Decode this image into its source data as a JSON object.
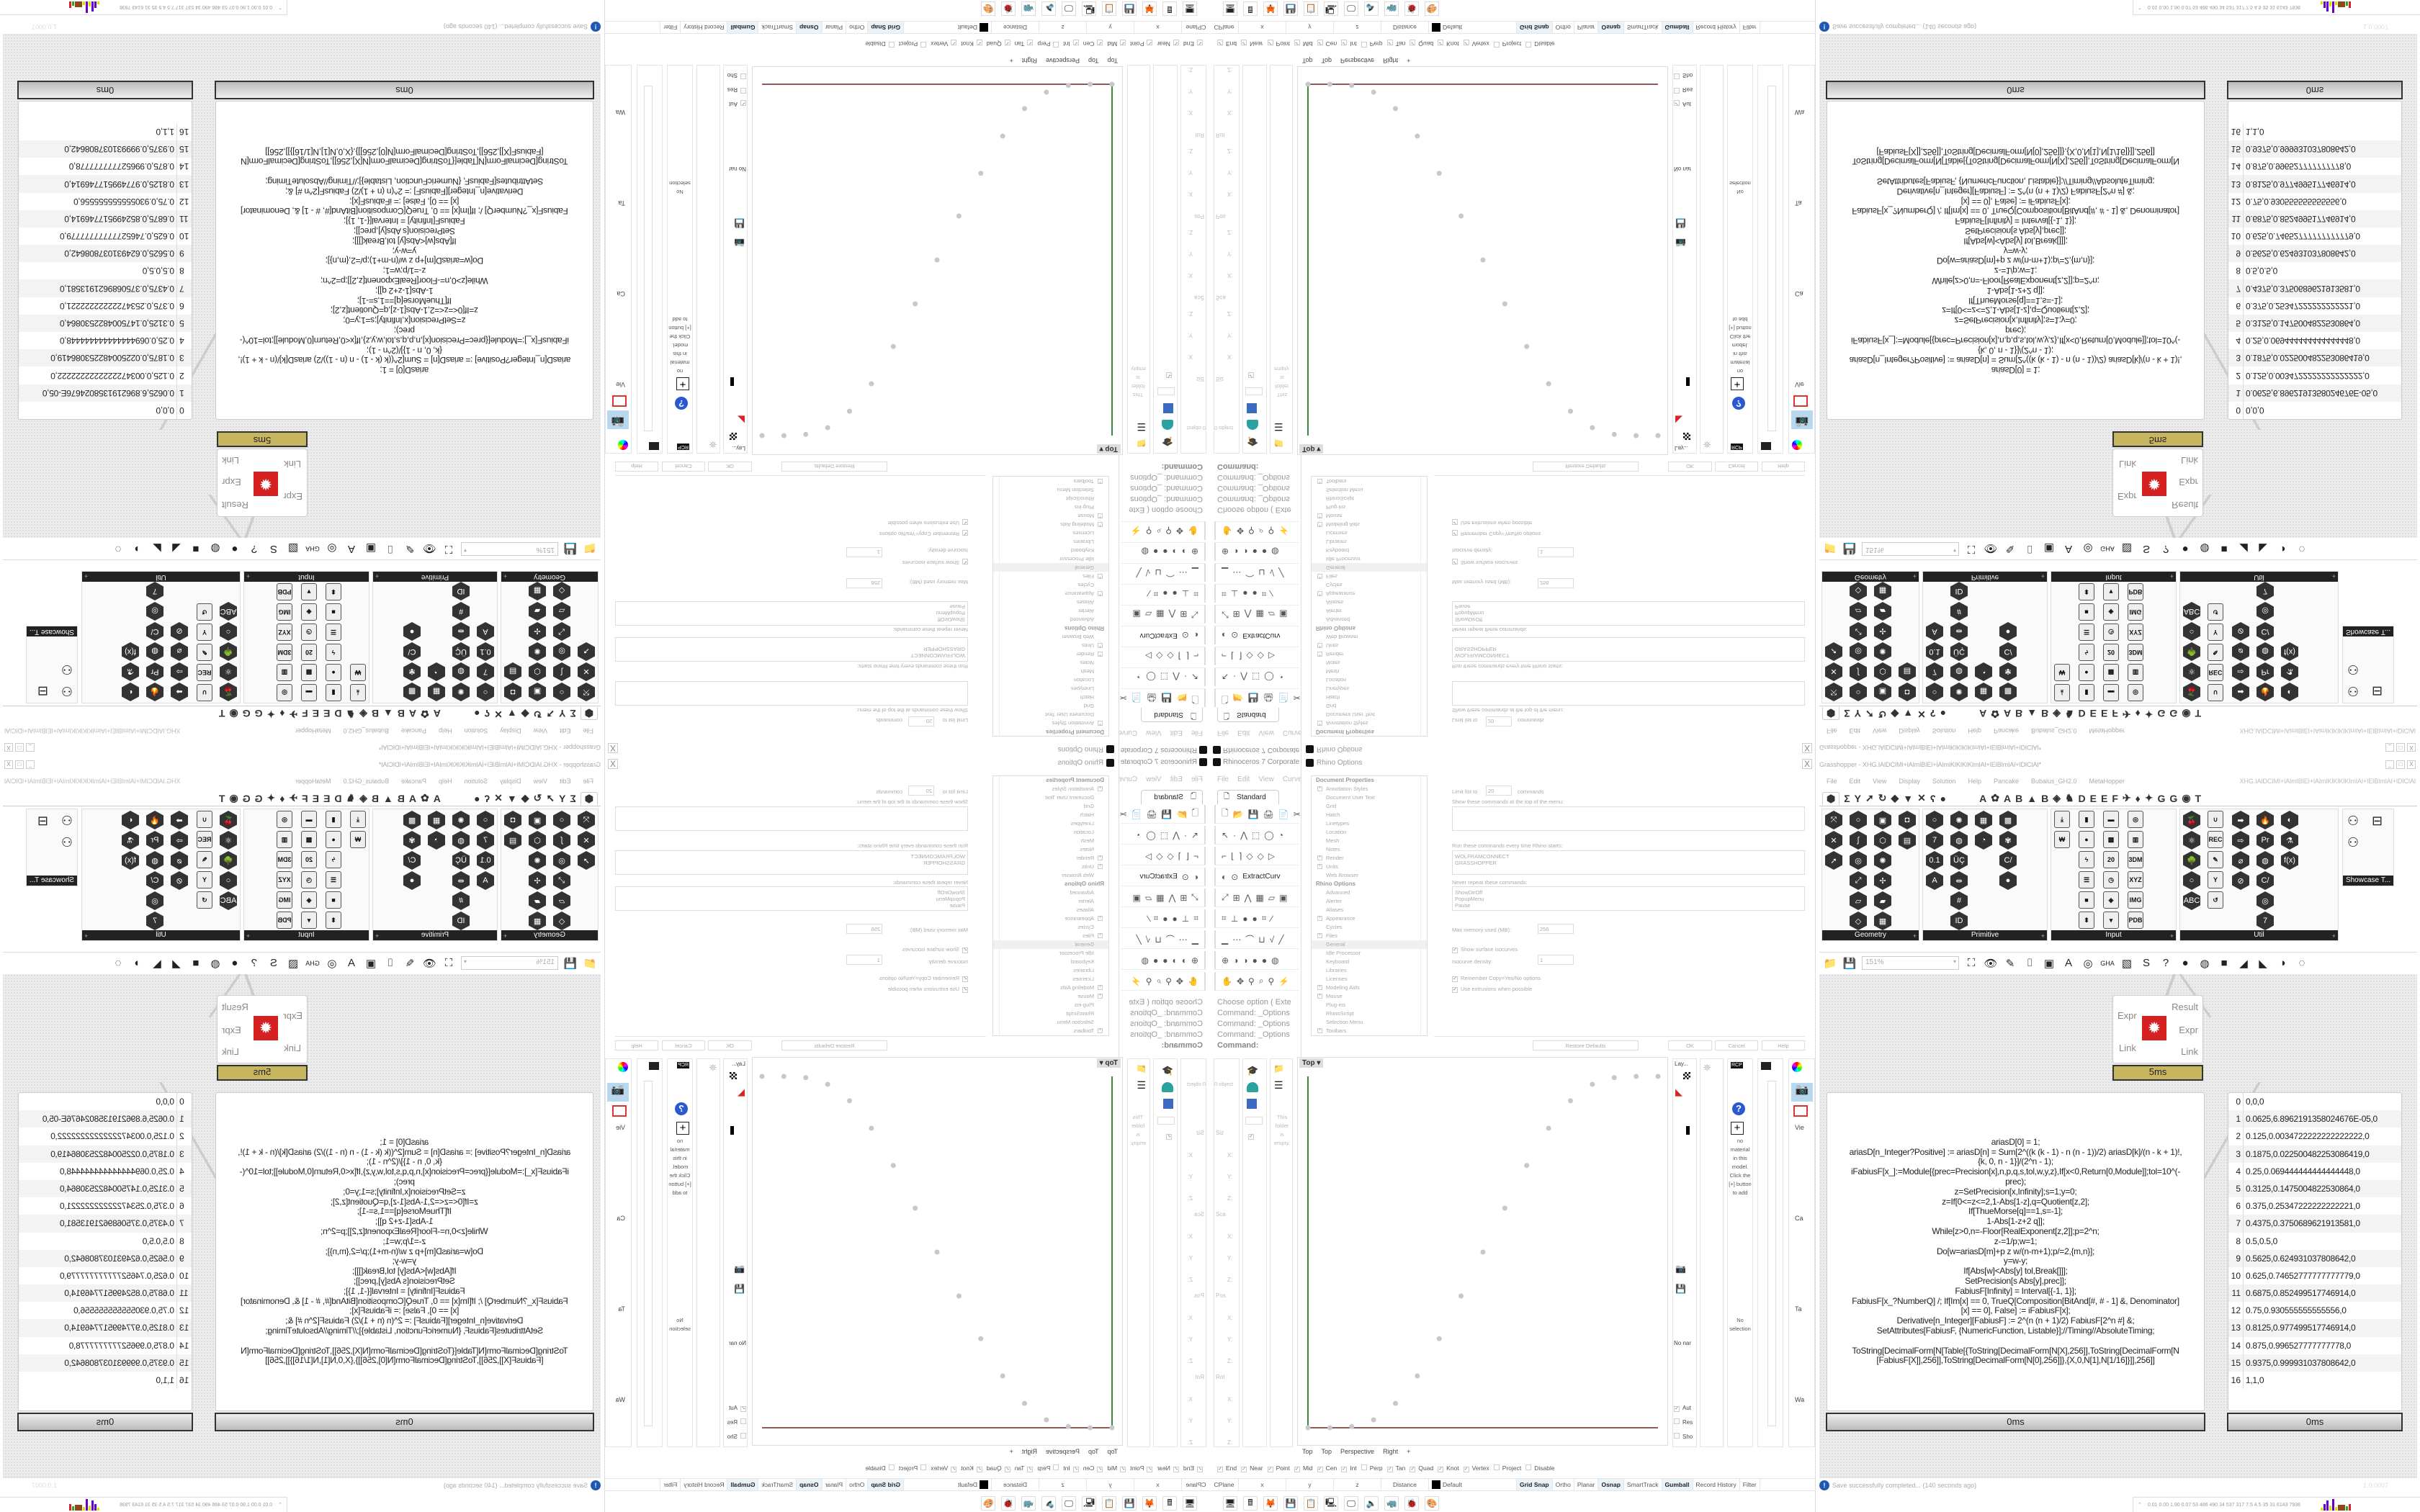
{
  "rhino": {
    "title": "Rhinoceros 7 Corporate -",
    "menu": [
      "File",
      "Edit",
      "View",
      "Curve"
    ],
    "toolbar_tab": "Standard",
    "extract_label": "ExtractCurv",
    "command_history": [
      "Choose option ( Exte",
      "Command: _Options",
      "Command: _Options",
      "Command: _Options"
    ],
    "command_prompt": "Command:",
    "toolbar_rows": [
      [
        "🗋",
        "📂",
        "💾",
        "🖨",
        "📄",
        "✂"
      ],
      [
        "↖",
        "·",
        "⋀",
        "⬚",
        "◯",
        "◔"
      ],
      [
        "⌐",
        "⌊",
        "⌉",
        "◇",
        "◇",
        "▷"
      ],
      [
        "◐",
        "⊙"
      ],
      [
        "⤢",
        "⊞",
        "⋀",
        "▦",
        "▱",
        "▣"
      ],
      [
        "⌗",
        "⊥",
        "●",
        "●",
        "⌗",
        "∕"
      ],
      [
        "▁",
        "⋯",
        "⌒",
        "⊔",
        "√",
        "╱"
      ],
      [
        "⊕",
        "◑",
        "◑",
        "●",
        "●",
        "◍"
      ],
      [
        "✋",
        "✥",
        "⚲",
        "⌕",
        "⚲",
        "⚡"
      ]
    ]
  },
  "options_dialog": {
    "title": "Rhino Options",
    "close": "X",
    "tree": [
      {
        "label": "Document Properties",
        "type": "header"
      },
      {
        "label": "Annotation Styles",
        "expandable": true
      },
      {
        "label": "Document User Text"
      },
      {
        "label": "Grid"
      },
      {
        "label": "Hatch"
      },
      {
        "label": "Linetypes"
      },
      {
        "label": "Location"
      },
      {
        "label": "Mesh"
      },
      {
        "label": "Notes"
      },
      {
        "label": "Render",
        "expandable": true
      },
      {
        "label": "Units",
        "expandable": true
      },
      {
        "label": "Web Browser"
      },
      {
        "label": "Rhino Options",
        "type": "header"
      },
      {
        "label": "Advanced"
      },
      {
        "label": "Alerter"
      },
      {
        "label": "Aliases"
      },
      {
        "label": "Appearance",
        "expandable": true
      },
      {
        "label": "Cycles"
      },
      {
        "label": "Files",
        "expandable": true
      },
      {
        "label": "General",
        "selected": true
      },
      {
        "label": "Idle Processor"
      },
      {
        "label": "Keyboard"
      },
      {
        "label": "Libraries"
      },
      {
        "label": "Licenses"
      },
      {
        "label": "Modeling Aids",
        "expandable": true
      },
      {
        "label": "Mouse",
        "expandable": true
      },
      {
        "label": "Plug-ins"
      },
      {
        "label": "RhinoScript"
      },
      {
        "label": "Selection Menu"
      },
      {
        "label": "Toolbars",
        "expandable": true
      }
    ],
    "limit_label": "Limit list to",
    "limit_value": "20",
    "limit_suffix": "commands",
    "show_top_label": "Show these commands at the top of the menu:",
    "run_label": "Run these commands every time Rhino starts:",
    "run_commands": [
      "WOLFRAMCONNECT",
      "GRASSHOPPER"
    ],
    "never_label": "Never repeat these commands:",
    "never_commands": [
      "ShowDirOff",
      "PopupMenu",
      "Pause"
    ],
    "max_mem_label": "Max memory used (MB):",
    "max_mem_value": "256",
    "show_isocurves": {
      "label": "Show surface isocurves",
      "checked": true
    },
    "iso_density_label": "Isocurve density:",
    "iso_density_value": "1",
    "remember_copy": {
      "label": "Remember Copy=Yes/No options",
      "checked": true
    },
    "use_extrusions": {
      "label": "Use extrusions when possible",
      "checked": true
    },
    "buttons": {
      "restore": "Restore Defaults",
      "ok": "OK",
      "cancel": "Cancel",
      "help": "Help"
    }
  },
  "viewport": {
    "label": "Top",
    "tabs": [
      "Top",
      "Top",
      "Perspective",
      "Right"
    ],
    "add_tab": "+"
  },
  "side_panels": {
    "properties": {
      "objects": "0 object",
      "sections": [
        "Siz",
        "Sca",
        "Pos",
        "Rot"
      ],
      "axes": [
        "X:",
        "Y:",
        "Z:"
      ]
    },
    "library": {
      "empty": "This folder is empty."
    },
    "layers": {
      "title": "Lay...",
      "no_named": "No nar"
    },
    "materials": {
      "text": "no material in this model. Click the [+] button to add"
    },
    "selection": {
      "text": "No selection"
    },
    "checks": [
      {
        "label": "Aut",
        "checked": true
      },
      {
        "label": "Res",
        "checked": false
      },
      {
        "label": "Sho",
        "checked": false
      },
      {
        "label": "Loc",
        "checked": false
      },
      {
        "label": "Aut",
        "checked": false
      }
    ],
    "right_labels": [
      "Vie",
      "Ca",
      "Ta",
      "Wa"
    ]
  },
  "osnap": [
    {
      "label": "End",
      "checked": true
    },
    {
      "label": "Near",
      "checked": true
    },
    {
      "label": "Point",
      "checked": true
    },
    {
      "label": "Mid",
      "checked": true
    },
    {
      "label": "Cen",
      "checked": true
    },
    {
      "label": "Int",
      "checked": true
    },
    {
      "label": "Perp",
      "checked": false
    },
    {
      "label": "Tan",
      "checked": true
    },
    {
      "label": "Quad",
      "checked": true
    },
    {
      "label": "Knot",
      "checked": true
    },
    {
      "label": "Vertex",
      "checked": true
    },
    {
      "label": "Project",
      "checked": false
    },
    {
      "label": "Disable",
      "checked": false
    }
  ],
  "statusbar": {
    "fields": [
      "CPlane",
      "x",
      "y",
      "z",
      "Distance"
    ],
    "layer": "Default",
    "layer_color": "#000000",
    "toggles": [
      {
        "label": "Grid Snap",
        "active": true
      },
      {
        "label": "Ortho",
        "active": false
      },
      {
        "label": "Planar",
        "active": false
      },
      {
        "label": "Osnap",
        "active": true
      },
      {
        "label": "SmartTrack",
        "active": false
      },
      {
        "label": "Gumball",
        "active": true
      },
      {
        "label": "Record History",
        "active": false
      },
      {
        "label": "Filter",
        "active": false
      }
    ]
  },
  "taskbar": [
    "🖥",
    "🖩",
    "🦊",
    "💾",
    "📋",
    "🖳",
    "🖵",
    "🔈",
    "🦏",
    "🐞",
    "🎨"
  ],
  "grasshopper": {
    "title": "Grasshopper - XHG.lAlDClMl+lAlmlBlEl+lAlmlKlKlKlKlmlAl+lElBlmlAl+lDlClAl*",
    "window_buttons": [
      "_",
      "□",
      "X"
    ],
    "menu": [
      "File",
      "Edit",
      "View",
      "Display",
      "Solution",
      "Help",
      "Pancake",
      "Bubalus_GH2.0",
      "MetaHopper"
    ],
    "menu_right": "XHG.lAlDClMl+lAlmlBlEl+lAlmlKlKlKlKlmlAl+lElBlmlAl+lDlClAl",
    "tabs": [
      "⬢",
      "Σ",
      "Y",
      "➚",
      "↻",
      "◆",
      "▼",
      "✕",
      "ʕ",
      "●",
      "A",
      "✿",
      "A",
      "B",
      "▲",
      "B",
      "◈",
      "♞",
      "D",
      "E",
      "E",
      "F",
      "✈",
      "♦",
      "✦",
      "G",
      "G",
      "◉",
      "T"
    ],
    "ribbon": [
      {
        "name": "Geometry",
        "icons": [
          "⤧",
          "✕",
          "➚",
          "",
          "",
          "",
          "○",
          "ʃ",
          "◎",
          "⤢",
          "▱",
          "◇",
          "▣",
          "⬡",
          "✺",
          "✢",
          "▰",
          "▦",
          "◘",
          "▤"
        ]
      },
      {
        "name": "Primitive",
        "icons": [
          "○",
          "7",
          "0.1",
          "A",
          "",
          "",
          "✺",
          "◍",
          "ÜÇ",
          "⇹",
          "#",
          "ID",
          "▦",
          "◔",
          "",
          "",
          "",
          "",
          "▩",
          "✾",
          "C/",
          "●"
        ]
      },
      {
        "name": "Input",
        "icons": [
          "⤓",
          "₩",
          "",
          "",
          "",
          "",
          "▮",
          "●",
          "ϟ",
          "☰",
          "■",
          "⬍",
          "▬",
          "▩",
          "20",
          "◷",
          "◈",
          "▾",
          "◎",
          "▥",
          "3DM",
          "XYZ",
          "IMG",
          "PDB"
        ]
      },
      {
        "name": "Util",
        "icons": [
          "🍒",
          "⚛",
          "🌳",
          "○",
          "ABC",
          "",
          "∪",
          "REC",
          "✎",
          "Y",
          "↺",
          "",
          "➡",
          "⇨",
          "⌀",
          "⊘",
          "",
          "",
          "🔥",
          "Pr",
          "◍",
          "C/",
          "◎",
          "7",
          "◐",
          "⚗",
          "f(x)"
        ]
      }
    ],
    "showcase": "Showcase T...",
    "zoom": "151%",
    "toolbar_icons": [
      "📁",
      "💾",
      "⛶",
      "👁",
      "✎",
      "⌷",
      "▣",
      "A",
      "◎",
      "GHA",
      "▧",
      "S",
      "?",
      "●",
      "◍",
      "■",
      "◢",
      "◣",
      "◑",
      "◌"
    ],
    "component": {
      "inputs": [
        "Expr",
        "Link"
      ],
      "outputs": [
        "Result",
        "Expr",
        "Link"
      ],
      "timing": "5ms"
    },
    "code_panel": {
      "lines": [
        "ariasD[0] = 1;",
        "ariasD[n_Integer?Positive] := ariasD[n] = Sum[2^((k (k - 1) - n (n - 1))/2) ariasD[k]/(n - k + 1)!,",
        "{k, 0, n - 1}]/(2^n - 1);",
        "iFabiusF[x_]:=Module[{prec=Precision[x],n,p,q,s,tol,w,y,z},If[x<0,Return[0,Module]];tol=10^(-",
        "prec);",
        "z=SetPrecision[x,Infinity];s=1;y=0;",
        "z=If[0<=z<=2,1-Abs[1-z],q=Quotient[z,2];",
        "If[ThueMorse[q]==1,s=-1];",
        "1-Abs[1-z+2 q]];",
        "While[z>0,n=-Floor[RealExponent[z,2]];p=2^n;",
        "z-=1/p;w=1;",
        "Do[w=ariasD[m]+p z w/(n-m+1);p/=2,{m,n}];",
        "y=w-y;",
        "If[Abs[w]<Abs[y] tol,Break[]]];",
        "SetPrecision[s Abs[y],prec]];",
        "FabiusF[Infinity] = Interval[{-1, 1}];",
        "FabiusF[x_?NumberQ] /; If[Im[x] == 0, TrueQ[Composition[BitAnd[#, # - 1] &, Denominator]",
        "[x] == 0], False] := iFabiusF[x];",
        "Derivative[n_Integer][FabiusF] := 2^(n (n + 1)/2) FabiusF[2^n #] &;",
        "SetAttributes[FabiusF, {NumericFunction, Listable}];//Timing//AbsoluteTiming;",
        "",
        "ToString[DecimalForm[N[Table[{ToString[DecimalForm[N[X],256]],ToString[DecimalForm[N",
        "[FabiusF[X]],256]],ToString[DecimalForm[N[0],256]]},{X,0,N[1],N[1/16]}]],256]]"
      ],
      "timing": "0ms"
    },
    "output_panel": {
      "rows": [
        "0,0,0",
        "0.0625,6.8962191358024676E-05,0",
        "0.125,0.0034722222222222222,0",
        "0.1875,0.022500482253086419,0",
        "0.25,0.069444444444444448,0",
        "0.3125,0.1475004822530864,0",
        "0.375,0.25347222222222221,0",
        "0.4375,0.3750689621913581,0",
        "0.5,0.5,0",
        "0.5625,0.624931037808642,0",
        "0.625,0.74652777777777779,0",
        "0.6875,0.852499517746914,0",
        "0.75,0.930555555555556,0",
        "0.8125,0.977499517746914,0",
        "0.875,0.996527777777778,0",
        "0.9375,0.999931037808642,0",
        "1,1,0"
      ],
      "timing": "0ms"
    },
    "status": "Save successfully completed... (140 seconds ago)",
    "version": "1.0.0007"
  },
  "tray": {
    "numbers": "0.01 0.00 1.90 0.07 53 486 490 34 537 317 7.5 4.5 35 31 6143 7936"
  },
  "colors": {
    "x_axis": "#8b5a5a",
    "y_axis": "#3a8a3a",
    "points": "#c8c8c8",
    "component": "#d42020",
    "timing_gold": "#c8b560"
  }
}
